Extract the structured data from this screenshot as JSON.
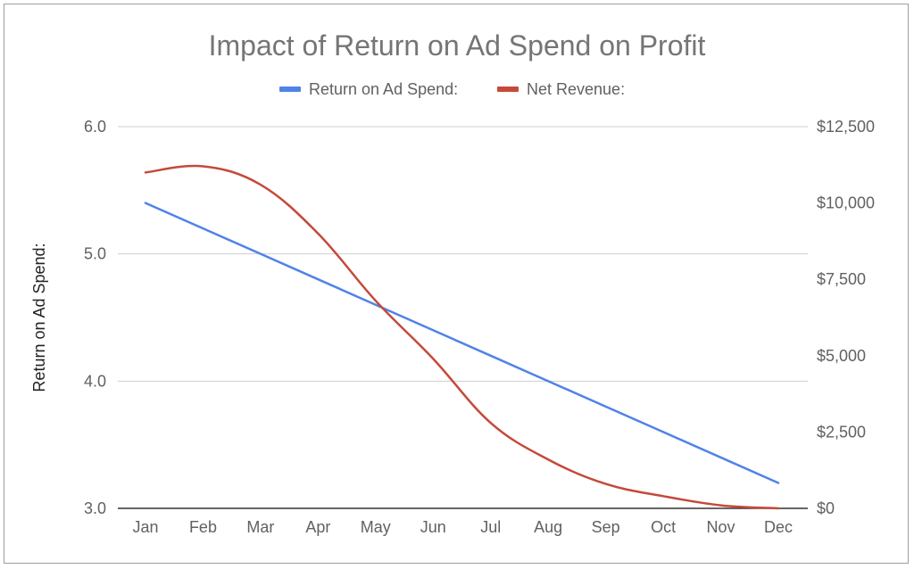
{
  "chart_data": {
    "type": "line",
    "title": "Impact of Return on Ad Spend on Profit",
    "categories": [
      "Jan",
      "Feb",
      "Mar",
      "Apr",
      "May",
      "Jun",
      "Jul",
      "Aug",
      "Sep",
      "Oct",
      "Nov",
      "Dec"
    ],
    "series": [
      {
        "name": "Return on Ad Spend:",
        "axis": "left",
        "color": "#4f83e8",
        "values": [
          5.4,
          5.2,
          5.0,
          4.8,
          4.6,
          4.4,
          4.2,
          4.0,
          3.8,
          3.6,
          3.4,
          3.2
        ]
      },
      {
        "name": "Net Revenue:",
        "axis": "right",
        "color": "#c5493b",
        "values": [
          11000,
          11200,
          10600,
          9000,
          6800,
          4900,
          2800,
          1600,
          800,
          400,
          100,
          0
        ]
      }
    ],
    "left_axis": {
      "label": "Return on Ad Spend:",
      "ylim": [
        3.0,
        6.0
      ],
      "ticks": [
        3.0,
        4.0,
        5.0,
        6.0
      ],
      "tick_labels": [
        "3.0",
        "4.0",
        "5.0",
        "6.0"
      ]
    },
    "right_axis": {
      "label": "",
      "ylim": [
        0,
        12500
      ],
      "ticks": [
        0,
        2500,
        5000,
        7500,
        10000,
        12500
      ],
      "tick_labels": [
        "$0",
        "$2,500",
        "$5,000",
        "$7,500",
        "$10,000",
        "$12,500"
      ]
    },
    "legend_position": "top-center",
    "grid": true
  }
}
